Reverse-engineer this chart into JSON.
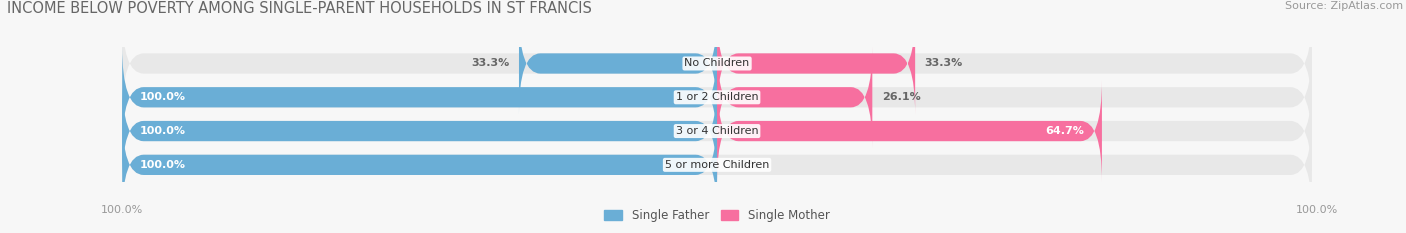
{
  "title": "INCOME BELOW POVERTY AMONG SINGLE-PARENT HOUSEHOLDS IN ST FRANCIS",
  "source": "Source: ZipAtlas.com",
  "categories": [
    "No Children",
    "1 or 2 Children",
    "3 or 4 Children",
    "5 or more Children"
  ],
  "single_father": [
    33.3,
    100.0,
    100.0,
    100.0
  ],
  "single_mother": [
    33.3,
    26.1,
    64.7,
    0.0
  ],
  "father_color": "#6aaed6",
  "mother_color": "#f76f9f",
  "bar_bg_color": "#e8e8e8",
  "fig_bg_color": "#f7f7f7",
  "bar_height": 0.6,
  "axis_label_left": "100.0%",
  "axis_label_right": "100.0%",
  "legend_father": "Single Father",
  "legend_mother": "Single Mother",
  "title_fontsize": 10.5,
  "source_fontsize": 8,
  "label_fontsize": 8,
  "category_fontsize": 8,
  "axis_tick_fontsize": 8
}
